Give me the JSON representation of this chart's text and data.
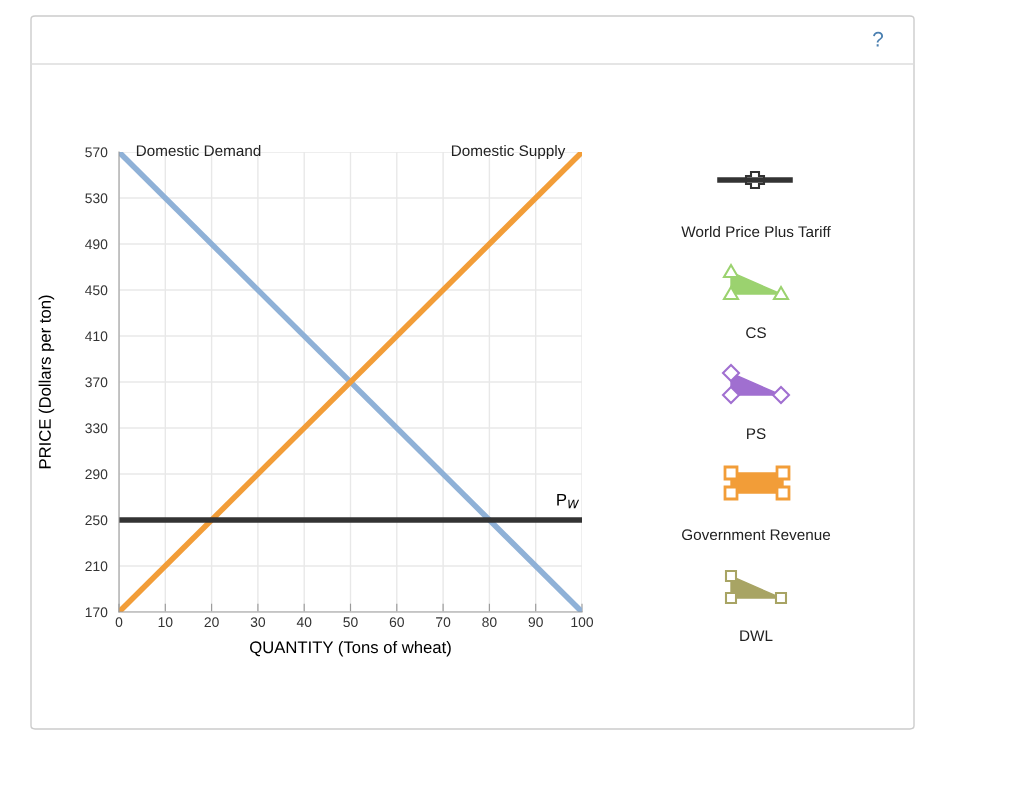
{
  "chart_data": {
    "type": "line",
    "xlabel": "QUANTITY (Tons of wheat)",
    "ylabel": "PRICE (Dollars per ton)",
    "x": [
      0,
      100
    ],
    "series": [
      {
        "name": "Domestic Demand",
        "color": "#8fb1d7",
        "values": [
          570,
          170
        ]
      },
      {
        "name": "Domestic Supply",
        "color": "#f29d38",
        "values": [
          170,
          570
        ]
      }
    ],
    "ref_lines": [
      {
        "axis": "y",
        "value": 250,
        "label": "P$_{W}$",
        "color": "#333333"
      }
    ],
    "xlim": [
      0,
      100
    ],
    "xticks": [
      0,
      10,
      20,
      30,
      40,
      50,
      60,
      70,
      80,
      90,
      100
    ],
    "ylim": [
      170,
      570
    ],
    "yticks": [
      170,
      210,
      250,
      290,
      330,
      370,
      410,
      450,
      490,
      530,
      570
    ],
    "grid": true,
    "marker": "none",
    "line_style": "solid",
    "annotations": [
      "?",
      "World Price Plus Tariff",
      "CS",
      "PS",
      "Government Revenue",
      "DWL"
    ]
  }
}
